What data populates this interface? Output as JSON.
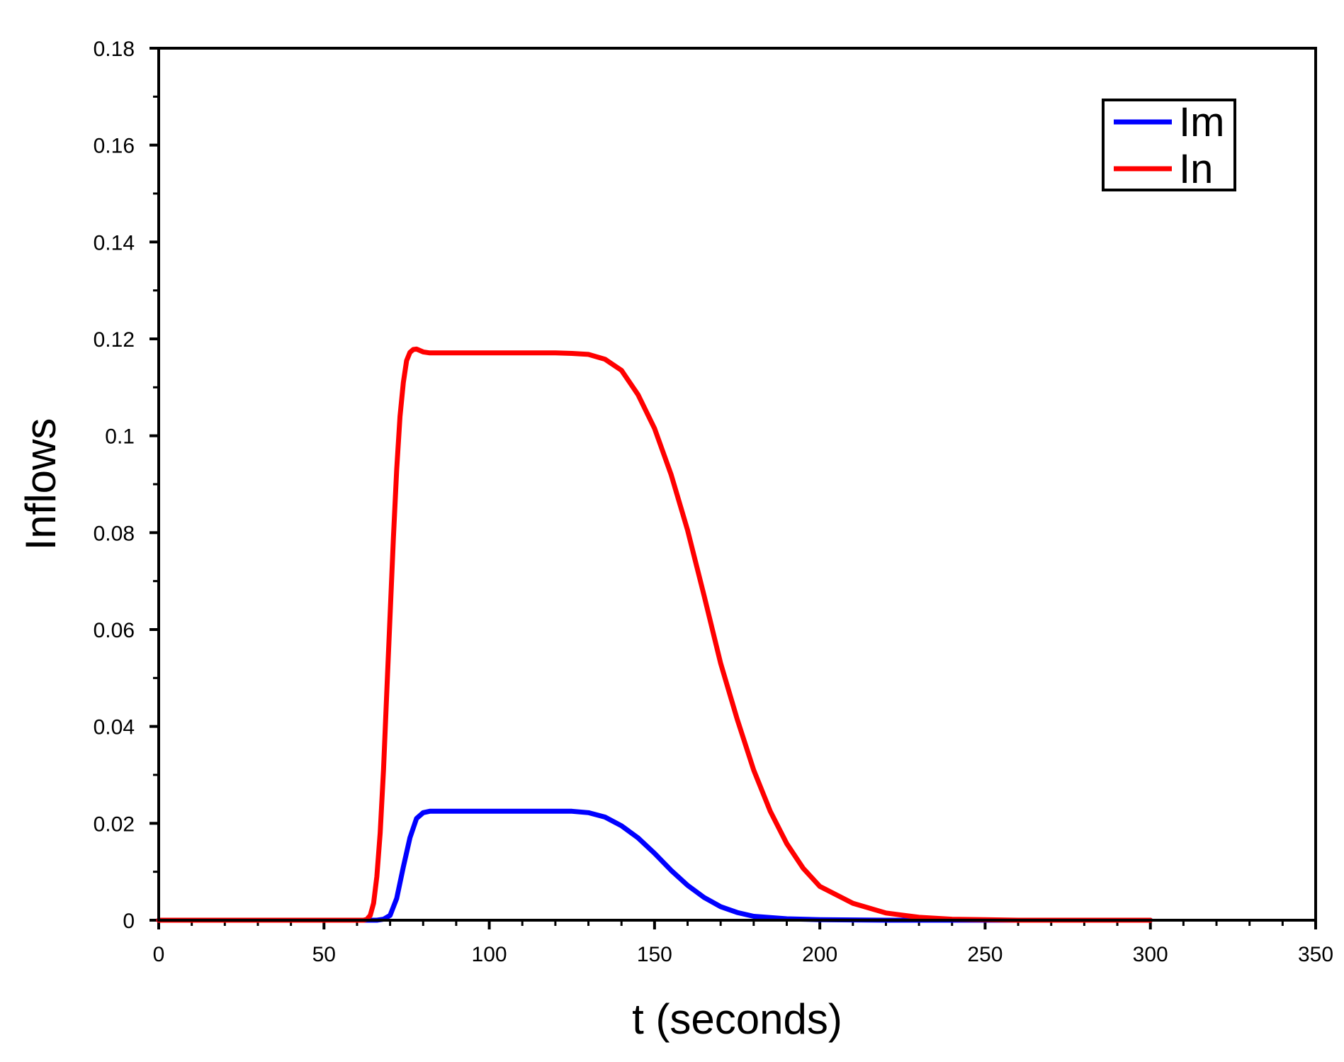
{
  "chart_data": {
    "type": "line",
    "xlabel": "t (seconds)",
    "ylabel": "Inflows",
    "xlim": [
      0,
      350
    ],
    "ylim": [
      0,
      0.18
    ],
    "x_ticks": [
      0,
      50,
      100,
      150,
      200,
      250,
      300,
      350
    ],
    "x_tick_labels": [
      "0",
      "50",
      "100",
      "150",
      "200",
      "250",
      "300",
      "350"
    ],
    "y_ticks": [
      0,
      0.02,
      0.04,
      0.06,
      0.08,
      0.1,
      0.12,
      0.14,
      0.16,
      0.18
    ],
    "y_tick_labels": [
      "0",
      "0.02",
      "0.04",
      "0.06",
      "0.08",
      "0.1",
      "0.12",
      "0.14",
      "0.16",
      "0.18"
    ],
    "grid": false,
    "legend_position": "top-right",
    "series": [
      {
        "name": "Im",
        "color": "#0000ff",
        "x": [
          0,
          20,
          40,
          60,
          66,
          68,
          70,
          72,
          74,
          76,
          78,
          80,
          82,
          85,
          90,
          100,
          110,
          120,
          125,
          130,
          135,
          140,
          145,
          150,
          155,
          160,
          165,
          170,
          175,
          180,
          190,
          200,
          220,
          250,
          300
        ],
        "y": [
          0,
          0,
          0,
          0,
          0,
          0.0002,
          0.001,
          0.0045,
          0.011,
          0.017,
          0.021,
          0.0222,
          0.0225,
          0.0225,
          0.0225,
          0.0225,
          0.0225,
          0.0225,
          0.0225,
          0.0222,
          0.0213,
          0.0195,
          0.017,
          0.0138,
          0.0103,
          0.0072,
          0.0047,
          0.0028,
          0.0016,
          0.0008,
          0.0003,
          0.0001,
          0,
          0,
          0
        ]
      },
      {
        "name": "In",
        "color": "#ff0000",
        "x": [
          0,
          20,
          40,
          60,
          62,
          63,
          64,
          65,
          66,
          67,
          68,
          69,
          70,
          71,
          72,
          73,
          74,
          75,
          76,
          77,
          78,
          79,
          80,
          82,
          85,
          90,
          100,
          110,
          120,
          125,
          130,
          135,
          140,
          145,
          150,
          155,
          160,
          165,
          170,
          175,
          180,
          185,
          190,
          195,
          200,
          210,
          220,
          230,
          240,
          250,
          260,
          270,
          280,
          300
        ],
        "y": [
          0,
          0,
          0,
          0,
          0,
          0.0002,
          0.001,
          0.0035,
          0.009,
          0.018,
          0.031,
          0.047,
          0.063,
          0.079,
          0.093,
          0.104,
          0.111,
          0.1155,
          0.1172,
          0.1178,
          0.1179,
          0.1176,
          0.1173,
          0.1171,
          0.1171,
          0.1171,
          0.1171,
          0.1171,
          0.1171,
          0.117,
          0.1168,
          0.1158,
          0.1135,
          0.1085,
          0.1015,
          0.092,
          0.0805,
          0.067,
          0.053,
          0.0415,
          0.031,
          0.0225,
          0.0158,
          0.0107,
          0.007,
          0.0035,
          0.0015,
          0.0006,
          0.0002,
          0.0001,
          0,
          0,
          0,
          0
        ]
      }
    ]
  }
}
